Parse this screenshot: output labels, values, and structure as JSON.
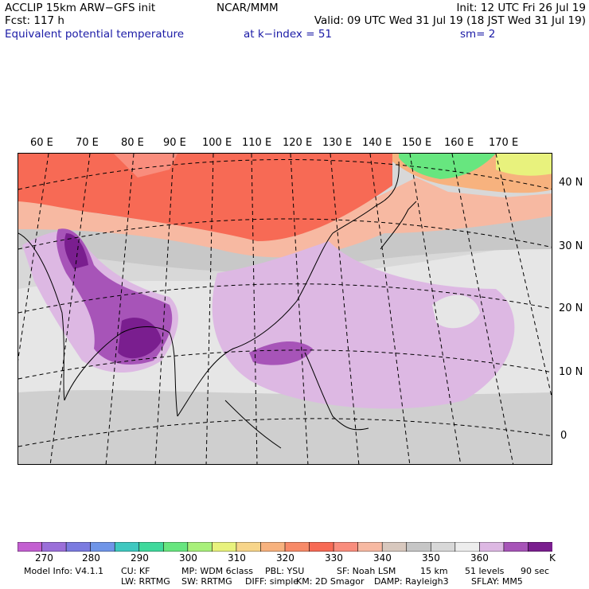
{
  "header": {
    "left_line1": "ACCLIP 15km ARW−GFS init",
    "left_line2": "Fcst:  117 h",
    "left_line3": "Equivalent potential temperature",
    "center_line1": "NCAR/MMM",
    "right_line1": "Init: 12 UTC Fri 26 Jul 19",
    "right_line2": "Valid: 09 UTC Wed 31 Jul 19 (18 JST Wed 31 Jul 19)",
    "level": "at k−index =  51",
    "smooth": "sm= 2"
  },
  "map": {
    "lon_labels": [
      "60 E",
      "70 E",
      "80 E",
      "90 E",
      "100 E",
      "110 E",
      "120 E",
      "130 E",
      "140 E",
      "150 E",
      "160 E",
      "170 E"
    ],
    "lat_labels": [
      "40 N",
      "30 N",
      "20 N",
      "10 N",
      "0"
    ]
  },
  "colorbar": {
    "colors": [
      "#c35fd1",
      "#9b6fd9",
      "#7b7be0",
      "#6f95e8",
      "#3fc8c0",
      "#3fd99c",
      "#67e67f",
      "#a8f07a",
      "#e8f27d",
      "#f7d58a",
      "#f7b27e",
      "#f78a68",
      "#f76a55",
      "#f98d7d",
      "#f7b9a2",
      "#d8c8be",
      "#c6c6c6",
      "#d8d8d8",
      "#ededed",
      "#ddb8e3",
      "#a754b8",
      "#7a1e8f"
    ],
    "labels": [
      "270",
      "280",
      "290",
      "300",
      "310",
      "320",
      "330",
      "340",
      "350",
      "360"
    ],
    "unit": "K"
  },
  "footer": {
    "line1": [
      "Model Info: V4.1.1",
      "CU: KF",
      "MP: WDM 6class",
      "PBL: YSU",
      "SF: Noah LSM",
      "15 km",
      "51 levels",
      "90 sec"
    ],
    "line2": [
      "LW: RRTMG",
      "SW: RRTMG",
      "DIFF: simple",
      "KM: 2D Smagor",
      "DAMP: Rayleigh3",
      "SFLAY: MM5"
    ]
  }
}
